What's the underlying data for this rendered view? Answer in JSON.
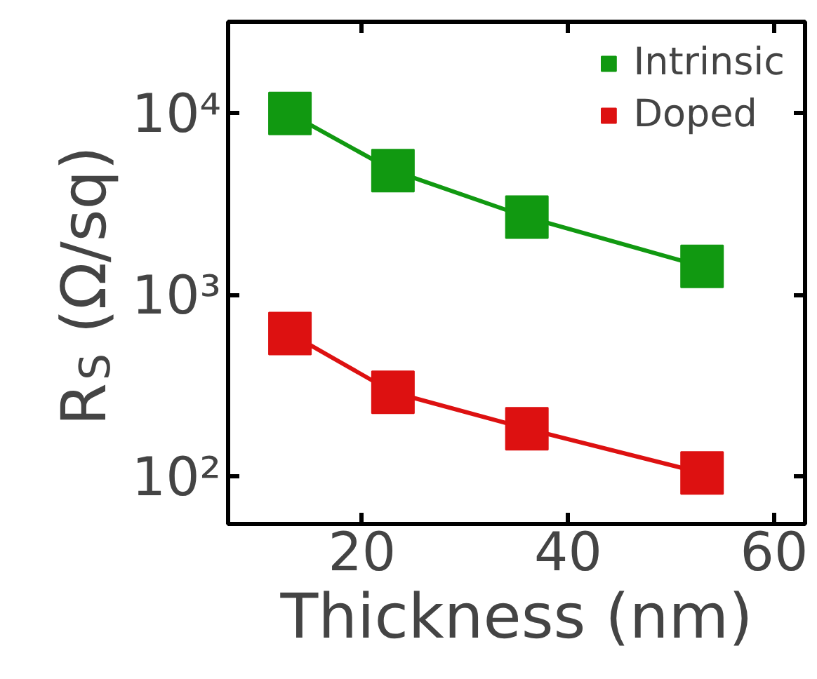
{
  "chart_data": {
    "type": "line",
    "xlabel": "Thickness (nm)",
    "ylabel": "R$_{S}$ (Ω/sq)",
    "x": [
      13,
      23,
      36,
      53
    ],
    "series": [
      {
        "name": "Intrinsic",
        "color": "#119911",
        "values": [
          10000,
          4850,
          2690,
          1440
        ]
      },
      {
        "name": "Doped",
        "color": "#dd1111",
        "values": [
          615,
          292,
          184,
          105
        ]
      }
    ],
    "log": "y",
    "xlim": [
      7,
      63
    ],
    "xticks": [
      20,
      40,
      60
    ],
    "ylim": [
      55,
      32000
    ],
    "yticks": [
      {
        "value": 100,
        "label": "10²"
      },
      {
        "value": 1000,
        "label": "10³"
      },
      {
        "value": 10000,
        "label": "10⁴"
      }
    ],
    "marker": "square",
    "line_style": "solid",
    "legend": "top right",
    "grid": false
  }
}
